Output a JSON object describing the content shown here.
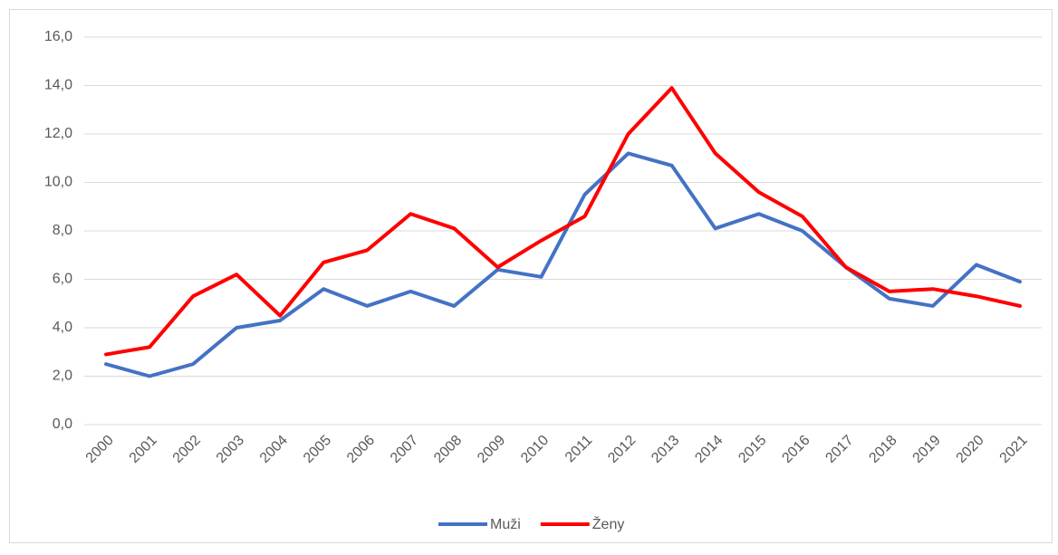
{
  "chart_data": {
    "type": "line",
    "categories": [
      "2000",
      "2001",
      "2002",
      "2003",
      "2004",
      "2005",
      "2006",
      "2007",
      "2008",
      "2009",
      "2010",
      "2011",
      "2012",
      "2013",
      "2014",
      "2015",
      "2016",
      "2017",
      "2018",
      "2019",
      "2020",
      "2021"
    ],
    "series": [
      {
        "name": "Muži",
        "color": "#4472c4",
        "values": [
          2.5,
          2.0,
          2.5,
          4.0,
          4.3,
          5.6,
          4.9,
          5.5,
          4.9,
          6.4,
          6.1,
          9.5,
          11.2,
          10.7,
          8.1,
          8.7,
          8.0,
          6.5,
          5.2,
          4.9,
          6.6,
          5.9
        ]
      },
      {
        "name": "Ženy",
        "color": "#ff0000",
        "values": [
          2.9,
          3.2,
          5.3,
          6.2,
          4.5,
          6.7,
          7.2,
          8.7,
          8.1,
          6.5,
          7.6,
          8.6,
          12.0,
          13.9,
          11.2,
          9.6,
          8.6,
          6.5,
          5.5,
          5.6,
          5.3,
          4.9
        ]
      }
    ],
    "ylim": [
      0,
      16
    ],
    "yticks": [
      {
        "value": 0,
        "label": "0,0"
      },
      {
        "value": 2,
        "label": "2,0"
      },
      {
        "value": 4,
        "label": "4,0"
      },
      {
        "value": 6,
        "label": "6,0"
      },
      {
        "value": 8,
        "label": "8,0"
      },
      {
        "value": 10,
        "label": "10,0"
      },
      {
        "value": 12,
        "label": "12,0"
      },
      {
        "value": 14,
        "label": "14,0"
      },
      {
        "value": 16,
        "label": "16,0"
      }
    ],
    "grid": true,
    "legend": "bottom"
  }
}
